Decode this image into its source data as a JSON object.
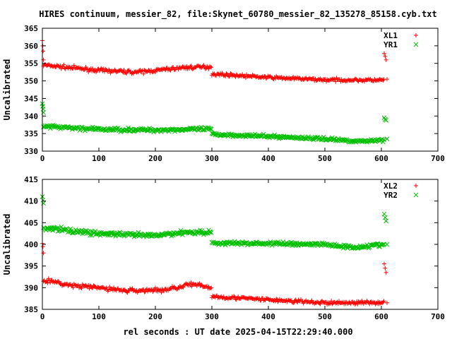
{
  "title": "HIRES continuum, messier_82, file:Skynet_60780_messier_82_135278_85158.cyb.txt",
  "xlabel": "rel seconds : UT date 2025-04-15T22:29:40.000",
  "colors": {
    "red": "#ff0000",
    "green": "#00c000",
    "axis": "#000000"
  },
  "chart_data": [
    {
      "type": "scatter",
      "ylabel": "Uncalibrated",
      "xlim": [
        0,
        700
      ],
      "ylim": [
        330,
        365
      ],
      "xticks": [
        0,
        100,
        200,
        300,
        400,
        500,
        600,
        700
      ],
      "yticks": [
        330,
        335,
        340,
        345,
        350,
        355,
        360,
        365
      ],
      "legend_position": "top-right",
      "series": [
        {
          "name": "XL1",
          "marker": "+",
          "color": "#ff0000",
          "segments": [
            {
              "x_range": [
                0,
                2
              ],
              "values": [
                361.5,
                360.0,
                358.5,
                356.0
              ]
            },
            {
              "x_range": [
                2,
                300
              ],
              "trend": [
                [
                  2,
                  354.5
                ],
                [
                  100,
                  353.0
                ],
                [
                  170,
                  352.5
                ],
                [
                  250,
                  353.8
                ],
                [
                  300,
                  354.0
                ]
              ],
              "spread": 0.6
            },
            {
              "x_range": [
                300,
                605
              ],
              "trend": [
                [
                  300,
                  352.0
                ],
                [
                  400,
                  351.0
                ],
                [
                  500,
                  350.3
                ],
                [
                  605,
                  350.2
                ]
              ],
              "spread": 0.5
            },
            {
              "x_range": [
                605,
                610
              ],
              "values": [
                357.8,
                357.0,
                356.0,
                350.5
              ]
            }
          ]
        },
        {
          "name": "YR1",
          "marker": "x",
          "color": "#00c000",
          "segments": [
            {
              "x_range": [
                0,
                2
              ],
              "values": [
                343.5,
                342.8,
                342.0,
                341.0
              ]
            },
            {
              "x_range": [
                2,
                300
              ],
              "trend": [
                [
                  2,
                  337.0
                ],
                [
                  100,
                  336.2
                ],
                [
                  200,
                  336.0
                ],
                [
                  300,
                  336.3
                ]
              ],
              "spread": 0.6
            },
            {
              "x_range": [
                300,
                605
              ],
              "trend": [
                [
                  300,
                  334.8
                ],
                [
                  400,
                  334.2
                ],
                [
                  500,
                  333.5
                ],
                [
                  560,
                  332.8
                ],
                [
                  605,
                  333.2
                ]
              ],
              "spread": 0.5
            },
            {
              "x_range": [
                605,
                610
              ],
              "values": [
                339.5,
                339.0,
                338.8,
                333.5
              ]
            }
          ]
        }
      ]
    },
    {
      "type": "scatter",
      "ylabel": "Uncalibrated",
      "xlim": [
        0,
        700
      ],
      "ylim": [
        385,
        415
      ],
      "xticks": [
        0,
        100,
        200,
        300,
        400,
        500,
        600,
        700
      ],
      "yticks": [
        385,
        390,
        395,
        400,
        405,
        410,
        415
      ],
      "legend_position": "top-right",
      "series": [
        {
          "name": "XL2",
          "marker": "+",
          "color": "#ff0000",
          "segments": [
            {
              "x_range": [
                0,
                2
              ],
              "values": [
                400.2,
                399.5,
                398.0
              ]
            },
            {
              "x_range": [
                2,
                300
              ],
              "trend": [
                [
                  2,
                  391.8
                ],
                [
                  50,
                  390.5
                ],
                [
                  100,
                  390.0
                ],
                [
                  150,
                  389.3
                ],
                [
                  220,
                  389.5
                ],
                [
                  260,
                  390.8
                ],
                [
                  300,
                  390.0
                ]
              ],
              "spread": 0.6
            },
            {
              "x_range": [
                300,
                605
              ],
              "trend": [
                [
                  300,
                  388.0
                ],
                [
                  400,
                  387.2
                ],
                [
                  500,
                  386.5
                ],
                [
                  605,
                  386.6
                ]
              ],
              "spread": 0.5
            },
            {
              "x_range": [
                605,
                610
              ],
              "values": [
                395.5,
                394.5,
                393.5,
                386.5
              ]
            }
          ]
        },
        {
          "name": "YR2",
          "marker": "x",
          "color": "#00c000",
          "segments": [
            {
              "x_range": [
                0,
                2
              ],
              "values": [
                411.0,
                410.2,
                409.5
              ]
            },
            {
              "x_range": [
                2,
                300
              ],
              "trend": [
                [
                  2,
                  403.8
                ],
                [
                  100,
                  402.5
                ],
                [
                  150,
                  402.2
                ],
                [
                  200,
                  402.0
                ],
                [
                  250,
                  402.8
                ],
                [
                  300,
                  402.8
                ]
              ],
              "spread": 0.6
            },
            {
              "x_range": [
                300,
                605
              ],
              "trend": [
                [
                  300,
                  400.3
                ],
                [
                  400,
                  400.2
                ],
                [
                  500,
                  400.0
                ],
                [
                  550,
                  399.3
                ],
                [
                  605,
                  400.0
                ]
              ],
              "spread": 0.5
            },
            {
              "x_range": [
                605,
                610
              ],
              "values": [
                407.0,
                406.2,
                405.4,
                400.0
              ]
            }
          ]
        }
      ]
    }
  ]
}
